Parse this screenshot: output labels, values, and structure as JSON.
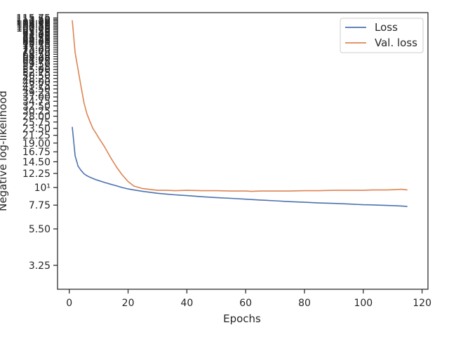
{
  "chart_data": {
    "type": "line",
    "xlabel": "Epochs",
    "ylabel": "Negative log-likelihood",
    "xlim": [
      -4,
      122
    ],
    "ylim": [
      2.3,
      125
    ],
    "yscale": "log",
    "xticks": [
      0,
      20,
      40,
      60,
      80,
      100,
      120
    ],
    "xtick_labels": [
      "0",
      "20",
      "40",
      "60",
      "80",
      "100",
      "120"
    ],
    "yticks": [
      3.25,
      5.5,
      7.75,
      10,
      12.25,
      14.5,
      16.75,
      19,
      21.25,
      23.5,
      25.75,
      28,
      30.25,
      32.5,
      34.75,
      37,
      39.25,
      41.5,
      43.75,
      46,
      48.25,
      50.5,
      52.75,
      55,
      57.25,
      59.5,
      61.75,
      64,
      66.25,
      68.5,
      70.75,
      73,
      75.25,
      77.5,
      79.75,
      82,
      84.25,
      86.5,
      88.75,
      91,
      93.25,
      95.5,
      97.75,
      100,
      102.25,
      104.5,
      106.75,
      109,
      111.25,
      113.5,
      115.75
    ],
    "ytick_labels": [
      "3.25",
      "5.50",
      "7.75",
      "10¹",
      "12.25",
      "14.50",
      "16.75",
      "19.00",
      "21.25",
      "23.50",
      "25.75",
      "28.00",
      "30.25",
      "32.50",
      "34.75",
      "37.00",
      "39.25",
      "41.50",
      "43.75",
      "46.00",
      "48.25",
      "50.50",
      "52.75",
      "55.00",
      "57.25",
      "59.50",
      "61.75",
      "64.00",
      "66.25",
      "68.50",
      "70.75",
      "73.00",
      "75.25",
      "77.50",
      "79.75",
      "82.00",
      "84.25",
      "86.50",
      "88.75",
      "91.00",
      "93.25",
      "95.50",
      "97.75",
      "100.00",
      "102.25",
      "104.50",
      "106.75",
      "109.00",
      "111.25",
      "113.50",
      "115.75"
    ],
    "grid": false,
    "legend_position": "top-right",
    "series": [
      {
        "name": "Loss",
        "color": "#4c72b0",
        "x": [
          1,
          2,
          3,
          4,
          5,
          6,
          7,
          8,
          9,
          10,
          12,
          14,
          16,
          18,
          20,
          22,
          25,
          28,
          30,
          33,
          36,
          40,
          45,
          50,
          55,
          60,
          65,
          70,
          75,
          80,
          85,
          90,
          95,
          100,
          103,
          105,
          108,
          111,
          113,
          115
        ],
        "values": [
          24.0,
          15.8,
          13.6,
          12.8,
          12.2,
          11.85,
          11.6,
          11.4,
          11.2,
          11.05,
          10.75,
          10.5,
          10.25,
          10.0,
          9.8,
          9.65,
          9.45,
          9.3,
          9.2,
          9.1,
          9.0,
          8.9,
          8.75,
          8.65,
          8.55,
          8.45,
          8.35,
          8.25,
          8.15,
          8.08,
          8.0,
          7.95,
          7.88,
          7.8,
          7.78,
          7.75,
          7.72,
          7.68,
          7.66,
          7.6
        ]
      },
      {
        "name": "Val. loss",
        "color": "#dd8452",
        "x": [
          1,
          2,
          3,
          4,
          5,
          6,
          7,
          8,
          9,
          10,
          12,
          14,
          16,
          18,
          20,
          22,
          25,
          28,
          30,
          33,
          36,
          40,
          45,
          50,
          55,
          60,
          62,
          65,
          70,
          75,
          80,
          85,
          90,
          95,
          100,
          103,
          105,
          108,
          111,
          113,
          115
        ],
        "values": [
          112.0,
          70.0,
          55.0,
          43.0,
          34.0,
          29.0,
          26.0,
          23.5,
          22.0,
          20.5,
          18.0,
          15.5,
          13.5,
          12.0,
          10.9,
          10.2,
          9.85,
          9.7,
          9.6,
          9.6,
          9.55,
          9.6,
          9.55,
          9.55,
          9.5,
          9.5,
          9.45,
          9.5,
          9.5,
          9.5,
          9.55,
          9.55,
          9.6,
          9.6,
          9.6,
          9.65,
          9.65,
          9.65,
          9.7,
          9.75,
          9.65
        ]
      }
    ]
  }
}
